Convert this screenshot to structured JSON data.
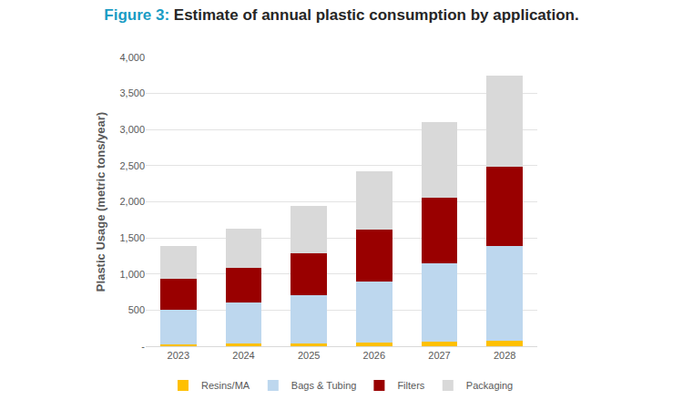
{
  "chart_data": {
    "type": "bar",
    "stacked": true,
    "title": "Figure 3: Estimate of annual plastic consumption by application.",
    "y_label": "Plastic Usage (metric tons/year)",
    "categories": [
      "2023",
      "2024",
      "2025",
      "2026",
      "2027",
      "2028"
    ],
    "series": [
      {
        "name": "Resins/MA",
        "color": "#ffc000",
        "values": [
          30,
          35,
          40,
          50,
          60,
          75
        ]
      },
      {
        "name": "Bags & Tubing",
        "color": "#bdd7ee",
        "values": [
          480,
          565,
          670,
          840,
          1090,
          1315
        ]
      },
      {
        "name": "Filters",
        "color": "#990000",
        "values": [
          420,
          480,
          580,
          720,
          910,
          1100
        ]
      },
      {
        "name": "Packaging",
        "color": "#d9d9d9",
        "values": [
          460,
          550,
          650,
          810,
          1050,
          1260
        ]
      }
    ],
    "ylim": [
      0,
      4000
    ],
    "yticks": [
      {
        "value": 0,
        "label": "-"
      },
      500,
      {
        "value": 1000,
        "label": "1,000"
      },
      {
        "value": 1500,
        "label": "1,500"
      },
      {
        "value": 2000,
        "label": "2,000"
      },
      {
        "value": 2500,
        "label": "2,500"
      },
      {
        "value": 3000,
        "label": "3,000"
      },
      {
        "value": 3500,
        "label": "3,500"
      },
      {
        "value": 4000,
        "label": "4,000"
      }
    ],
    "grid": true,
    "legend": "bottom"
  }
}
